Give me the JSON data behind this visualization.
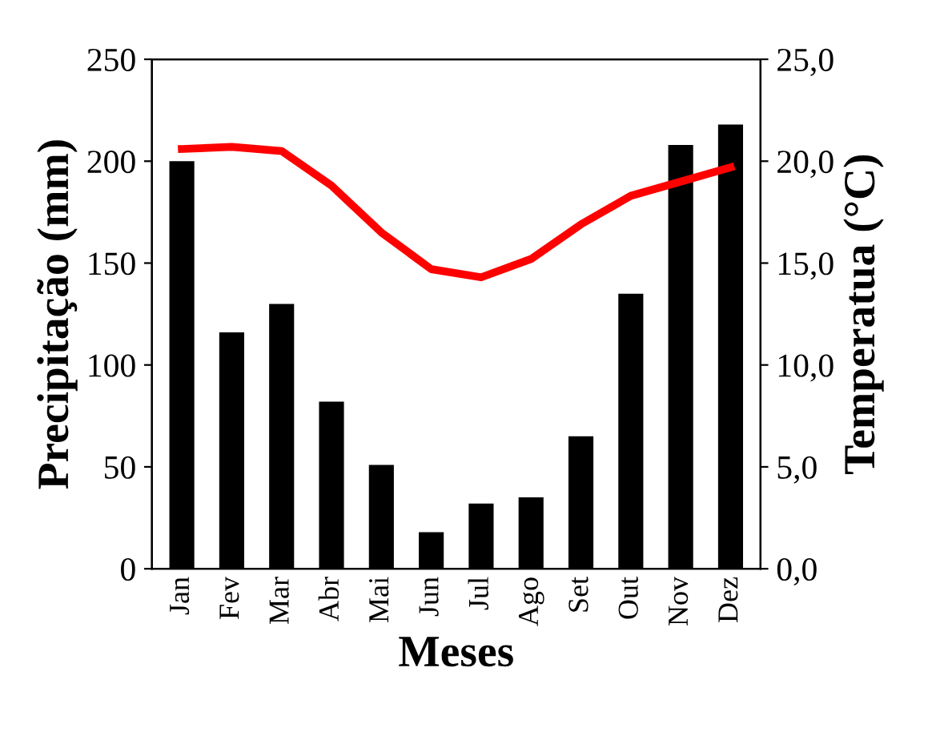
{
  "chart_data": {
    "type": "bar",
    "xlabel": "Meses",
    "ylabel": "Precipitação (mm)",
    "y2label": "Temperatua (°C)",
    "categories": [
      "Jan",
      "Fev",
      "Mar",
      "Abr",
      "Mai",
      "Jun",
      "Jul",
      "Ago",
      "Set",
      "Out",
      "Nov",
      "Dez"
    ],
    "series": [
      {
        "color": "#000000",
        "values": [
          200,
          116,
          130,
          82,
          51,
          18,
          32,
          35,
          65,
          135,
          208,
          218
        ]
      },
      {
        "type": "line",
        "axis": "y2",
        "color": "#ff0000",
        "line_style": "solid",
        "values": [
          20.6,
          20.7,
          20.5,
          18.8,
          16.5,
          14.7,
          14.3,
          15.2,
          16.9,
          18.3,
          19.0,
          19.7
        ]
      }
    ],
    "ylim": [
      0,
      250
    ],
    "yticks": [
      0,
      50,
      100,
      150,
      200,
      250
    ],
    "y2lim": [
      0,
      25
    ],
    "y2ticks": [
      {
        "value": 0,
        "label": "0,0"
      },
      {
        "value": 5,
        "label": "5,0"
      },
      {
        "value": 10,
        "label": "10,0"
      },
      {
        "value": 15,
        "label": "15,0"
      },
      {
        "value": 20,
        "label": "20,0"
      },
      {
        "value": 25,
        "label": "25,0"
      }
    ],
    "grid": false,
    "legend": false
  }
}
